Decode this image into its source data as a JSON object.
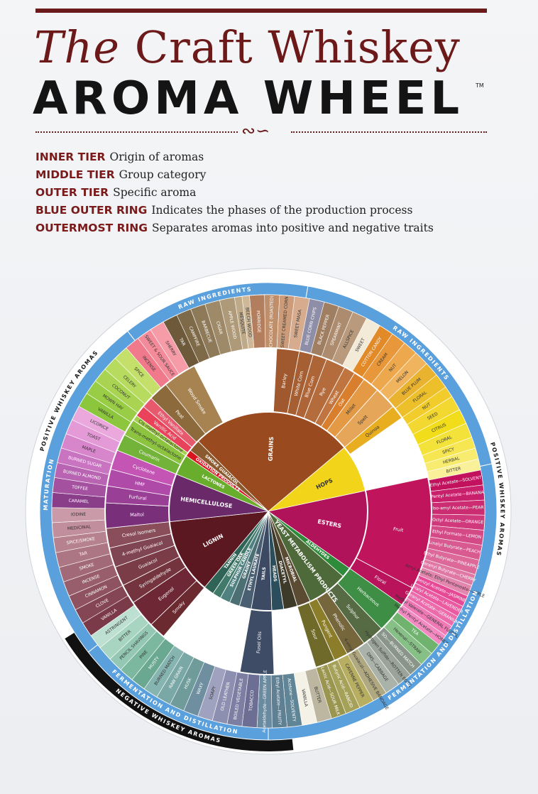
{
  "title": {
    "line1_italic": "The",
    "line1_rest": "Craft Whiskey",
    "line2": "AROMA WHEEL",
    "tm": "TM"
  },
  "ornament": "∾∽",
  "legend": [
    {
      "key": "INNER TIER",
      "text": "Origin of aromas"
    },
    {
      "key": "MIDDLE TIER",
      "text": "Group category"
    },
    {
      "key": "OUTER TIER",
      "text": "Specific aroma"
    },
    {
      "key": "BLUE OUTER RING",
      "text": "Indicates the phases of the production process"
    },
    {
      "key": "OUTERMOST RING",
      "text": "Separates aromas into positive and negative traits"
    }
  ],
  "colors": {
    "maroon": "#6b1919",
    "blue_ring": "#5aa0dc",
    "black_ring": "#111111"
  },
  "wheel": {
    "outermost": [
      {
        "label": "POSITIVE WHISKEY AROMAS",
        "from": 0,
        "to": 174,
        "color": "#ffffff"
      },
      {
        "label": "NEGATIVE WHISKEY AROMAS",
        "from": 174,
        "to": 238,
        "color": "#111111"
      },
      {
        "label": "POSITIVE WHISKEY AROMAS",
        "from": 238,
        "to": 360,
        "color": "#ffffff"
      }
    ],
    "blue_ring": [
      {
        "label": "RAW INGREDIENTS",
        "from": 322,
        "to": 10
      },
      {
        "label": "RAW INGREDIENTS",
        "from": 10,
        "to": 78
      },
      {
        "label": "FERMENTATION AND DISTILLATION",
        "from": 78,
        "to": 180
      },
      {
        "label": "FERMENTATION AND DISTILLATION",
        "from": 180,
        "to": 232
      },
      {
        "label": "MATURATION",
        "from": 232,
        "to": 322
      }
    ],
    "inner": [
      {
        "label": "GRAINS",
        "from": 315,
        "to": 50,
        "color": "#9a4a1f"
      },
      {
        "label": "HOPS",
        "from": 50,
        "to": 78,
        "color": "#f2d41a"
      },
      {
        "label": "ESTERS",
        "from": 78,
        "to": 125,
        "color": "#b0135a"
      },
      {
        "label": "ALDEHYDES",
        "from": 125,
        "to": 131,
        "color": "#2e8b3a"
      },
      {
        "label": "YEAST METABOLISM PRODUCTS",
        "from": 131,
        "to": 155,
        "color": "#4e6a3a"
      },
      {
        "label": "MICROBIAL",
        "from": 155,
        "to": 163,
        "color": "#5b4b33"
      },
      {
        "label": "DIACETYL",
        "from": 163,
        "to": 171,
        "color": "#3e3a2a"
      },
      {
        "label": "HEADS",
        "from": 171,
        "to": 178,
        "color": "#2c4d5b"
      },
      {
        "label": "TAILS",
        "from": 178,
        "to": 190,
        "color": "#3c4a63"
      },
      {
        "label": "ETHYL LAURATE",
        "from": 190,
        "to": 197,
        "color": "#4a5f72"
      },
      {
        "label": "GRAINY",
        "from": 197,
        "to": 203,
        "color": "#4c6f73"
      },
      {
        "label": "SULPHUR CANDLE",
        "from": 203,
        "to": 209,
        "color": "#4f8181"
      },
      {
        "label": "GREEN OAK",
        "from": 209,
        "to": 214,
        "color": "#427a6a"
      },
      {
        "label": "TANNIN",
        "from": 214,
        "to": 220,
        "color": "#2e6355"
      },
      {
        "label": "LIGNIN",
        "from": 220,
        "to": 264,
        "color": "#5c1820"
      },
      {
        "label": "HEMICELLULOSE",
        "from": 264,
        "to": 292,
        "color": "#6a2a6a"
      },
      {
        "label": "LACTONES",
        "from": 292,
        "to": 304,
        "color": "#69ad2d"
      },
      {
        "label": "OXIDATION PRODUCTS",
        "from": 304,
        "to": 308,
        "color": "#d8141e"
      },
      {
        "label": "SMOKE GUAIACOL",
        "from": 308,
        "to": 315,
        "color": "#8a5a2e"
      }
    ],
    "middle": [
      {
        "label": "Barley",
        "from": 3,
        "to": 11,
        "color": "#a0582e"
      },
      {
        "label": "White Corn",
        "from": 11,
        "to": 16,
        "color": "#a65f33"
      },
      {
        "label": "Blue Corn",
        "from": 16,
        "to": 21,
        "color": "#ad6538"
      },
      {
        "label": "Rye",
        "from": 21,
        "to": 28,
        "color": "#b56c3c"
      },
      {
        "label": "Wheat",
        "from": 28,
        "to": 32,
        "color": "#c07541"
      },
      {
        "label": "Oat",
        "from": 32,
        "to": 36,
        "color": "#d97e2c"
      },
      {
        "label": "Millet",
        "from": 36,
        "to": 42,
        "color": "#e49a45"
      },
      {
        "label": "Spelt",
        "from": 42,
        "to": 50,
        "color": "#e6a65a"
      },
      {
        "label": "Quinoa",
        "from": 50,
        "to": 55,
        "color": "#e9ae20"
      },
      {
        "label": "Fruit",
        "from": 78,
        "to": 118,
        "color": "#c0145c"
      },
      {
        "label": "Floral",
        "from": 118,
        "to": 125,
        "color": "#b8135b"
      },
      {
        "label": "Herbaceous",
        "from": 125,
        "to": 136,
        "color": "#3e8e45"
      },
      {
        "label": "Sulphur",
        "from": 136,
        "to": 144,
        "color": "#566b43"
      },
      {
        "label": "Phenolic",
        "from": 144,
        "to": 151,
        "color": "#76663c"
      },
      {
        "label": "Pungent",
        "from": 151,
        "to": 156,
        "color": "#8c7d2a"
      },
      {
        "label": "Sour",
        "from": 156,
        "to": 163,
        "color": "#6f6a2a"
      },
      {
        "label": "Fusel Oils",
        "from": 178,
        "to": 190,
        "color": "#3f4c65"
      },
      {
        "label": "Smoky",
        "from": 220,
        "to": 226,
        "color": "#6a2a30"
      },
      {
        "label": "Eugenol",
        "from": 226,
        "to": 236,
        "color": "#6e2835"
      },
      {
        "label": "Syringaldehyde",
        "from": 236,
        "to": 243,
        "color": "#73343e"
      },
      {
        "label": "Guaiacol",
        "from": 243,
        "to": 250,
        "color": "#7a3c46"
      },
      {
        "label": "4-methyl Guaiacol",
        "from": 250,
        "to": 257,
        "color": "#804552"
      },
      {
        "label": "Cresol Isomers",
        "from": 257,
        "to": 264,
        "color": "#8a4e5b"
      },
      {
        "label": "Maltol",
        "from": 264,
        "to": 273,
        "color": "#7a2f7a"
      },
      {
        "label": "Furfural",
        "from": 273,
        "to": 279,
        "color": "#9a3f96"
      },
      {
        "label": "HMF",
        "from": 279,
        "to": 285,
        "color": "#b04aa8"
      },
      {
        "label": "Cyclotene",
        "from": 285,
        "to": 292,
        "color": "#c455b5"
      },
      {
        "label": "Coumarin",
        "from": 292,
        "to": 298,
        "color": "#74b33a"
      },
      {
        "label": "Trans-methyl-octalactone",
        "from": 298,
        "to": 304,
        "color": "#8cc43f"
      },
      {
        "label": "Cis-methyl-octalactone",
        "from": 304,
        "to": 306,
        "color": "#a3d14a"
      },
      {
        "label": "Vanillic Acid",
        "from": 306,
        "to": 310,
        "color": "#e8435a"
      },
      {
        "label": "Ethyl Vanillate",
        "from": 310,
        "to": 314,
        "color": "#e75a6e"
      },
      {
        "label": "Peat",
        "from": 314,
        "to": 321,
        "color": "#8c6a3c"
      },
      {
        "label": "Wood Smoke",
        "from": 321,
        "to": 333,
        "color": "#a88352"
      }
    ],
    "outer": [
      {
        "label": "PORRIDGE",
        "from": 355,
        "to": 359,
        "color": "#b37e5e"
      },
      {
        "label": "CHOCOLATE (ROASTED)",
        "from": 359,
        "to": 3,
        "color": "#bf8e6b"
      },
      {
        "label": "SWEET CREAMED CORN",
        "from": 3,
        "to": 7,
        "color": "#cc9c7a"
      },
      {
        "label": "SWEET MASA",
        "from": 7,
        "to": 11,
        "color": "#d7ab8d"
      },
      {
        "label": "BLUE CORN CHIPS",
        "from": 11,
        "to": 15,
        "color": "#8e8ea8"
      },
      {
        "label": "BLACK PEPPER",
        "from": 15,
        "to": 19,
        "color": "#a07e62"
      },
      {
        "label": "SPEARMINT",
        "from": 19,
        "to": 23,
        "color": "#ad8b6e"
      },
      {
        "label": "ALLSPICE",
        "from": 23,
        "to": 27,
        "color": "#b99a7d"
      },
      {
        "label": "SWEET",
        "from": 27,
        "to": 31,
        "color": "#f4ead8"
      },
      {
        "label": "COTTON CANDY",
        "from": 31,
        "to": 35,
        "color": "#e38a28"
      },
      {
        "label": "CREAM",
        "from": 35,
        "to": 39,
        "color": "#e8983a"
      },
      {
        "label": "NUT",
        "from": 39,
        "to": 43,
        "color": "#eda74c"
      },
      {
        "label": "MELON",
        "from": 43,
        "to": 47,
        "color": "#f1b45e"
      },
      {
        "label": "BLUE PLUM",
        "from": 47,
        "to": 51,
        "color": "#e9b330"
      },
      {
        "label": "FLORAL",
        "from": 51,
        "to": 55,
        "color": "#edc02b"
      },
      {
        "label": "NUT",
        "from": 55,
        "to": 58,
        "color": "#f1cc2a"
      },
      {
        "label": "SEED",
        "from": 58,
        "to": 62,
        "color": "#f2d830"
      },
      {
        "label": "CITRUS",
        "from": 62,
        "to": 66,
        "color": "#f1dd1a"
      },
      {
        "label": "FLORAL",
        "from": 66,
        "to": 70,
        "color": "#f3e23a"
      },
      {
        "label": "SPICY",
        "from": 70,
        "to": 73,
        "color": "#f6e652"
      },
      {
        "label": "HERBAL",
        "from": 73,
        "to": 76,
        "color": "#f8ec70"
      },
      {
        "label": "BITTER",
        "from": 76,
        "to": 79,
        "color": "#faf099"
      },
      {
        "label": "Ethyl Acetate—SOLVENT",
        "from": 79,
        "to": 83,
        "color": "#c2125e"
      },
      {
        "label": "Pentyl Acetate—BANANA",
        "from": 83,
        "to": 87,
        "color": "#c8206a"
      },
      {
        "label": "Iso-amyl Acetate—PEAR",
        "from": 87,
        "to": 91,
        "color": "#cc2c72"
      },
      {
        "label": "Octyl Acetate—ORANGE",
        "from": 91,
        "to": 95,
        "color": "#d03a7c"
      },
      {
        "label": "Ethyl Formate—LEMON",
        "from": 95,
        "to": 99,
        "color": "#d44a86"
      },
      {
        "label": "Linalyl Butyrate—PEACH",
        "from": 99,
        "to": 103,
        "color": "#d85a90"
      },
      {
        "label": "Ethyl Butyrate—PINEAPPLE",
        "from": 103,
        "to": 107,
        "color": "#dc699a"
      },
      {
        "label": "Geranyl Butyrate—CHERRY",
        "from": 107,
        "to": 110,
        "color": "#e078a4"
      },
      {
        "label": "Amyl Acetate; Ethyl Pentanoate—APPLE",
        "from": 110,
        "to": 113,
        "color": "#e487ae"
      },
      {
        "label": "Benzyl Acetate—JASMINE",
        "from": 113,
        "to": 116,
        "color": "#e64a95"
      },
      {
        "label": "Linalyl Acetate—LAVENDER",
        "from": 116,
        "to": 119,
        "color": "#ea5aa0"
      },
      {
        "label": "Geranyl Acetate—GERANIUM",
        "from": 119,
        "to": 122,
        "color": "#ed6aab"
      },
      {
        "label": "Methyl Valerate—GENERAL FLORAL",
        "from": 122,
        "to": 125,
        "color": "#f07ab6"
      },
      {
        "label": "Methyl Pentyl Acetate—HONEY",
        "from": 125,
        "to": 128,
        "color": "#f38ac1"
      },
      {
        "label": "TEA",
        "from": 128,
        "to": 131,
        "color": "#6fb36f"
      },
      {
        "label": "Hexenal—STRAW",
        "from": 131,
        "to": 135,
        "color": "#86c086"
      },
      {
        "label": "SO₂—BURNED MATCH",
        "from": 135,
        "to": 139,
        "color": "#8a958a"
      },
      {
        "label": "Hydrogen Sulfide—ROTTEN EGGS",
        "from": 139,
        "to": 143,
        "color": "#9aa49a"
      },
      {
        "label": "DMS—CABBAGE",
        "from": 143,
        "to": 147,
        "color": "#aab3aa"
      },
      {
        "label": "4-vinyl Guaiacol—ADHESIVE BANDAGE",
        "from": 147,
        "to": 151,
        "color": "#b0a880"
      },
      {
        "label": "CAYENNE PEPPER",
        "from": 151,
        "to": 155,
        "color": "#b8ae62"
      },
      {
        "label": "Butyric Acid—RANCID",
        "from": 155,
        "to": 159,
        "color": "#a6a158"
      },
      {
        "label": "Lactic Acid—SOUR MILK",
        "from": 159,
        "to": 163,
        "color": "#9a9650"
      },
      {
        "label": "BUTTER",
        "from": 163,
        "to": 167,
        "color": "#bdb7a2"
      },
      {
        "label": "VANILLA",
        "from": 167,
        "to": 171,
        "color": "#f4f1e6"
      },
      {
        "label": "Acetone—SOLVENTY",
        "from": 171,
        "to": 175,
        "color": "#5f8596"
      },
      {
        "label": "Ethyl Acetate—FRUITY",
        "from": 175,
        "to": 179,
        "color": "#5f7f92"
      },
      {
        "label": "Acetaldehyde—GREEN APPLE",
        "from": 179,
        "to": 183,
        "color": "#6a8aa0"
      },
      {
        "label": "TOBACCO",
        "from": 183,
        "to": 187,
        "color": "#6c6f93"
      },
      {
        "label": "BOILED VEGETABLE",
        "from": 187,
        "to": 191,
        "color": "#7c7ea2"
      },
      {
        "label": "OLD LEATHER",
        "from": 191,
        "to": 195,
        "color": "#8d8fb0"
      },
      {
        "label": "SOAPY",
        "from": 195,
        "to": 199,
        "color": "#9fa2bf"
      },
      {
        "label": "WAXY",
        "from": 199,
        "to": 203,
        "color": "#6f8fa0"
      },
      {
        "label": "HUSK",
        "from": 203,
        "to": 207,
        "color": "#6f9b9b"
      },
      {
        "label": "RAW GRAIN",
        "from": 207,
        "to": 211,
        "color": "#7aa8a6"
      },
      {
        "label": "BURNED MATCH",
        "from": 211,
        "to": 215,
        "color": "#86b4b0"
      },
      {
        "label": "MUSTY",
        "from": 215,
        "to": 219,
        "color": "#6aa892"
      },
      {
        "label": "PINE",
        "from": 219,
        "to": 223,
        "color": "#7cb8a0"
      },
      {
        "label": "PENCIL SHAVINGS",
        "from": 223,
        "to": 227,
        "color": "#94c8b4"
      },
      {
        "label": "BITTER",
        "from": 227,
        "to": 231,
        "color": "#a8d4c2"
      },
      {
        "label": "ASTRINGENT",
        "from": 231,
        "to": 235,
        "color": "#bee0d2"
      },
      {
        "label": "VANILLA",
        "from": 235,
        "to": 239,
        "color": "#7a3a48"
      },
      {
        "label": "CLOVE",
        "from": 239,
        "to": 243,
        "color": "#844654"
      },
      {
        "label": "CINNAMON",
        "from": 243,
        "to": 247,
        "color": "#8e5260"
      },
      {
        "label": "INCENSE",
        "from": 247,
        "to": 251,
        "color": "#985e6c"
      },
      {
        "label": "SMOKE",
        "from": 251,
        "to": 255,
        "color": "#a26a78"
      },
      {
        "label": "TAR",
        "from": 255,
        "to": 259,
        "color": "#ac7684"
      },
      {
        "label": "SPICE/SMOKE",
        "from": 259,
        "to": 263,
        "color": "#b68290"
      },
      {
        "label": "MEDICINAL",
        "from": 263,
        "to": 267,
        "color": "#c08e9c"
      },
      {
        "label": "IODINE",
        "from": 267,
        "to": 271,
        "color": "#ca9aa8"
      },
      {
        "label": "CARAMEL",
        "from": 271,
        "to": 275,
        "color": "#8a3e8a"
      },
      {
        "label": "TOFFEE",
        "from": 275,
        "to": 279,
        "color": "#a452a0"
      },
      {
        "label": "BURNED ALMOND",
        "from": 279,
        "to": 283,
        "color": "#b864b2"
      },
      {
        "label": "BURNED SUGAR",
        "from": 283,
        "to": 287,
        "color": "#c874c0"
      },
      {
        "label": "MAPLE",
        "from": 287,
        "to": 291,
        "color": "#d886cc"
      },
      {
        "label": "TOAST",
        "from": 291,
        "to": 295,
        "color": "#e49ad6"
      },
      {
        "label": "LICORICE",
        "from": 295,
        "to": 299,
        "color": "#eaa8dc"
      },
      {
        "label": "VANILLA",
        "from": 299,
        "to": 303,
        "color": "#8cc63c"
      },
      {
        "label": "MOWN HAY",
        "from": 303,
        "to": 307,
        "color": "#9acd46"
      },
      {
        "label": "COCONUT",
        "from": 307,
        "to": 311,
        "color": "#a8d452"
      },
      {
        "label": "CELERY",
        "from": 311,
        "to": 315,
        "color": "#b6db5e"
      },
      {
        "label": "SPICE",
        "from": 315,
        "to": 319,
        "color": "#c4e06a"
      },
      {
        "label": "INCENSE",
        "from": 319,
        "to": 323,
        "color": "#f07a8c"
      },
      {
        "label": "SWEET & SOUR SAUCE",
        "from": 323,
        "to": 327,
        "color": "#f38b9a"
      },
      {
        "label": "SHERRY",
        "from": 327,
        "to": 331,
        "color": "#f59ca8"
      },
      {
        "label": "TAR",
        "from": 331,
        "to": 335,
        "color": "#6e5a3a"
      },
      {
        "label": "CAMPFIRE",
        "from": 335,
        "to": 339,
        "color": "#7e6a48"
      },
      {
        "label": "BARBECUE",
        "from": 339,
        "to": 343,
        "color": "#8e7a58"
      },
      {
        "label": "CIGAR",
        "from": 343,
        "to": 347,
        "color": "#9e8a68"
      },
      {
        "label": "APPLE WOOD",
        "from": 347,
        "to": 351,
        "color": "#ae9a78"
      },
      {
        "label": "MESQUITE",
        "from": 351,
        "to": 353,
        "color": "#bea988"
      },
      {
        "label": "BEECH WOOD",
        "from": 353,
        "to": 355,
        "color": "#ceb898"
      }
    ]
  }
}
